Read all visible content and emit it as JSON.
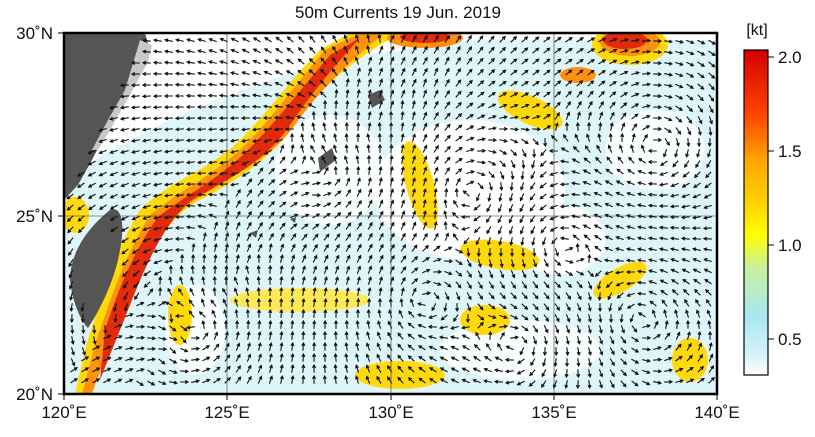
{
  "title": "50m Currents  19 Jun. 2019",
  "map": {
    "lon_range": [
      120,
      140
    ],
    "lat_range": [
      20,
      30
    ],
    "lon_ticks": [
      "120˚E",
      "125˚E",
      "130˚E",
      "135˚E",
      "140˚E"
    ],
    "lat_ticks": [
      "30˚N",
      "25˚N",
      "20˚N"
    ],
    "land_color": "#555555",
    "ocean_color": "#ffffff"
  },
  "colorbar": {
    "unit": "[kt]",
    "labels": [
      "2.0",
      "1.5",
      "1.0",
      "0.5"
    ],
    "colors": [
      "#d40000",
      "#ff4500",
      "#ff8c00",
      "#ffd700",
      "#ffff00",
      "#c8f0a0",
      "#a8e6f0",
      "#d6f4f8",
      "#ffffff"
    ]
  }
}
